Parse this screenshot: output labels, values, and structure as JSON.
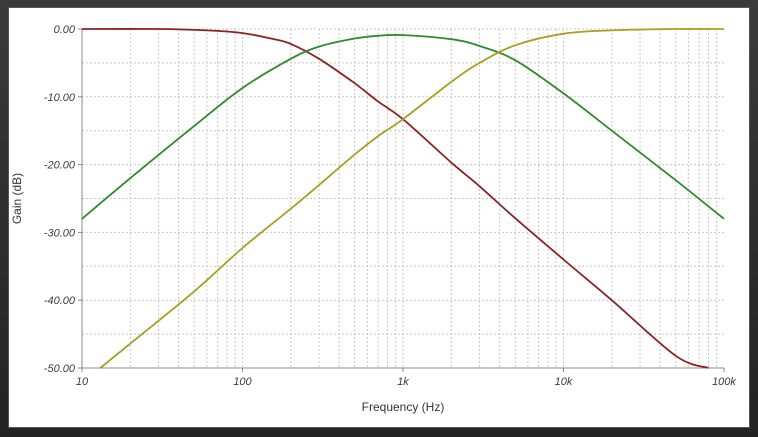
{
  "chart_data": {
    "type": "line",
    "title": "",
    "xlabel": "Frequency (Hz)",
    "ylabel": "Gain (dB)",
    "x_scale": "log",
    "xlim": [
      10,
      100000
    ],
    "ylim": [
      -50,
      0
    ],
    "grid": true,
    "x_ticks": [
      "10",
      "100",
      "1k",
      "10k",
      "100k"
    ],
    "y_ticks": [
      "0.00",
      "-10.00",
      "-20.00",
      "-30.00",
      "-40.00",
      "-50.00"
    ],
    "series": [
      {
        "color": "#8b2323",
        "x": [
          10,
          30,
          60,
          100,
          150,
          200,
          300,
          500,
          700,
          1000,
          2000,
          3000,
          5000,
          10000,
          20000,
          50000,
          80000
        ],
        "y": [
          0.0,
          0.0,
          -0.2,
          -0.6,
          -1.4,
          -2.2,
          -4.4,
          -8.0,
          -10.7,
          -13.3,
          -19.7,
          -23.2,
          -27.9,
          -34.0,
          -40.0,
          -48.2,
          -50.0
        ]
      },
      {
        "color": "#2e8b2e",
        "x": [
          10,
          20,
          50,
          100,
          200,
          300,
          500,
          700,
          1000,
          2000,
          3000,
          5000,
          10000,
          20000,
          50000,
          100000
        ],
        "y": [
          -28.0,
          -22.0,
          -14.3,
          -8.7,
          -4.4,
          -2.6,
          -1.4,
          -1.0,
          -0.9,
          -1.5,
          -2.5,
          -4.6,
          -9.5,
          -15.0,
          -22.3,
          -28.0
        ]
      },
      {
        "color": "#a8a020",
        "x": [
          13,
          20,
          50,
          100,
          200,
          300,
          500,
          700,
          1000,
          2000,
          3000,
          5000,
          10000,
          20000,
          50000,
          100000
        ],
        "y": [
          -50.0,
          -46.4,
          -38.7,
          -32.3,
          -26.5,
          -23.0,
          -18.5,
          -15.8,
          -13.3,
          -7.8,
          -5.0,
          -2.4,
          -0.7,
          -0.2,
          0.0,
          0.0
        ]
      }
    ]
  }
}
